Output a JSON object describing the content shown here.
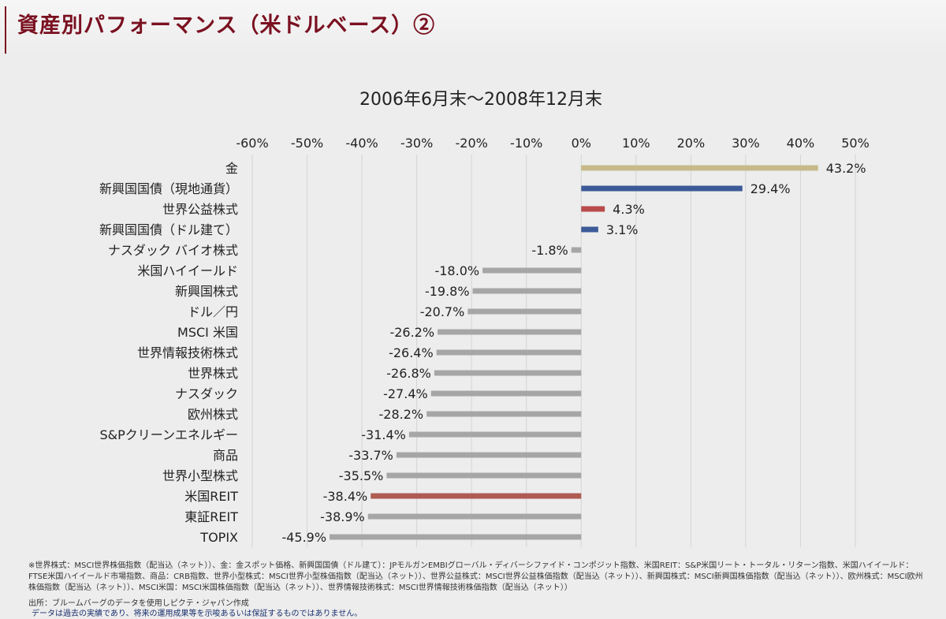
{
  "slide": {
    "title": "資産別パフォーマンス（米ドルベース）②"
  },
  "chart_data": {
    "type": "bar",
    "orientation": "horizontal",
    "title": "2006年6月末～2008年12月末",
    "xlim": [
      -60,
      50
    ],
    "xticks": [
      -60,
      -50,
      -40,
      -30,
      -20,
      -10,
      0,
      10,
      20,
      30,
      40,
      50
    ],
    "tick_labels": [
      "-60%",
      "-50%",
      "-40%",
      "-30%",
      "-20%",
      "-10%",
      "0%",
      "10%",
      "20%",
      "30%",
      "40%",
      "50%"
    ],
    "grid": true,
    "categories": [
      "金",
      "新興国国債（現地通貨）",
      "世界公益株式",
      "新興国国債（ドル建て）",
      "ナスダック バイオ株式",
      "米国ハイイールド",
      "新興国株式",
      "ドル／円",
      "MSCI 米国",
      "世界情報技術株式",
      "世界株式",
      "ナスダック",
      "欧州株式",
      "S&Pクリーンエネルギー",
      "商品",
      "世界小型株式",
      "米国REIT",
      "東証REIT",
      "TOPIX"
    ],
    "values": [
      43.2,
      29.4,
      4.3,
      3.1,
      -1.8,
      -18.0,
      -19.8,
      -20.7,
      -26.2,
      -26.4,
      -26.8,
      -27.4,
      -28.2,
      -31.4,
      -33.7,
      -35.5,
      -38.4,
      -38.9,
      -45.9
    ],
    "value_labels": [
      "43.2%",
      "29.4%",
      "4.3%",
      "3.1%",
      "-1.8%",
      "-18.0%",
      "-19.8%",
      "-20.7%",
      "-26.2%",
      "-26.4%",
      "-26.8%",
      "-27.4%",
      "-28.2%",
      "-31.4%",
      "-33.7%",
      "-35.5%",
      "-38.4%",
      "-38.9%",
      "-45.9%"
    ],
    "colors": [
      "#c8b98a",
      "#3c5a98",
      "#b84a4a",
      "#3c5a98",
      "#a6a6a6",
      "#a6a6a6",
      "#a6a6a6",
      "#a6a6a6",
      "#a6a6a6",
      "#a6a6a6",
      "#a6a6a6",
      "#a6a6a6",
      "#a6a6a6",
      "#a6a6a6",
      "#a6a6a6",
      "#a6a6a6",
      "#b05a52",
      "#a6a6a6",
      "#a6a6a6"
    ]
  },
  "notes": {
    "footnote": "※世界株式：MSCI世界株価指数（配当込（ネット））、金：金スポット価格、新興国国債（ドル建て）：JPモルガンEMBIグローバル・ディバーシファイド・コンポジット指数、米国REIT：S&P米国リート・トータル・リターン指数、米国ハイイールド：FTSE米国ハイイールド市場指数、商品：CRB指数、世界小型株式：MSCI世界小型株価指数（配当込（ネット））、世界公益株式：MSCI世界公益株価指数（配当込（ネット））、新興国株式：MSCI新興国株価指数（配当込（ネット））、欧州株式：MSCI欧州株価指数（配当込（ネット））、MSCI米国：MSCI米国株価指数（配当込（ネット））、世界情報技術株式：MSCI世界情報技術株価指数（配当込（ネット））",
    "source": "出所：ブルームバーグのデータを使用しピクテ・ジャパン作成",
    "disclaimer": "データは過去の実績であり、将来の運用成果等を示唆あるいは保証するものではありません。"
  }
}
